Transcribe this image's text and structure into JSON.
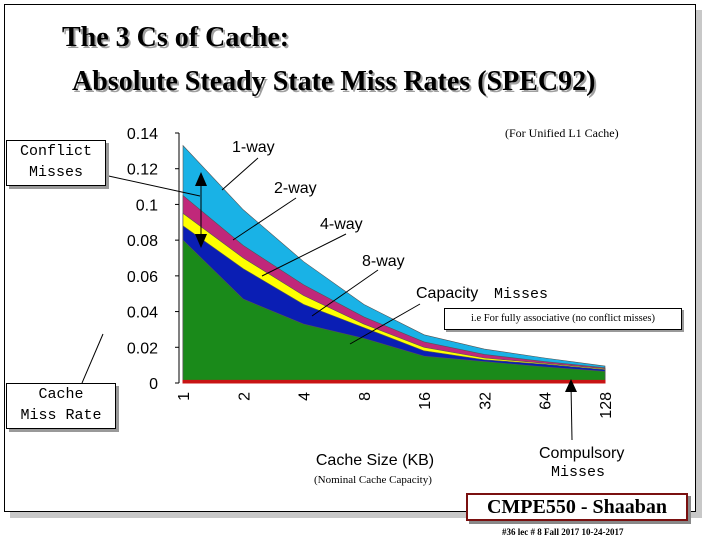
{
  "slide": {
    "title_line1": "The 3 Cs of Cache:",
    "title_line2": "Absolute Steady State Miss Rates (SPEC92)",
    "footer": "CMPE550 - Shaaban",
    "footer_sub": "#36  lec # 8   Fall 2017  10-24-2017"
  },
  "labels": {
    "conflict_box": [
      "Conflict",
      "Misses"
    ],
    "cache_box": [
      "Cache",
      "Miss Rate"
    ],
    "unified_note": "(For Unified L1 Cache)",
    "fully_assoc_note": "i.e For fully associative (no conflict misses)",
    "capacity_a": "Capacity",
    "capacity_b": "Misses",
    "compulsory_a": "Compulsory",
    "compulsory_b": "Misses",
    "nominal_note": "(Nominal Cache Capacity)"
  },
  "colors": {
    "one_way": "#19b2e6",
    "two_way": "#c0287a",
    "four_way": "#ffff00",
    "eight_way": "#0a1eb4",
    "capacity": "#1a8a1a",
    "compulsory": "#c81414"
  },
  "chart_data": {
    "type": "area",
    "title": "",
    "xlabel": "Cache Size (KB)",
    "ylabel": "",
    "categories": [
      "1",
      "2",
      "4",
      "8",
      "16",
      "32",
      "64",
      "128"
    ],
    "ylim": [
      0,
      0.14
    ],
    "yticks": [
      "0.14",
      "0.12",
      "0.1",
      "0.08",
      "0.06",
      "0.04",
      "0.02",
      "0"
    ],
    "series": [
      {
        "name": "1-way",
        "values": [
          0.133,
          0.097,
          0.068,
          0.044,
          0.027,
          0.019,
          0.014,
          0.0095
        ]
      },
      {
        "name": "2-way",
        "values": [
          0.105,
          0.077,
          0.055,
          0.037,
          0.023,
          0.016,
          0.012,
          0.0085
        ]
      },
      {
        "name": "4-way",
        "values": [
          0.095,
          0.07,
          0.049,
          0.033,
          0.02,
          0.014,
          0.011,
          0.008
        ]
      },
      {
        "name": "8-way",
        "values": [
          0.088,
          0.064,
          0.044,
          0.031,
          0.018,
          0.013,
          0.0105,
          0.0075
        ]
      },
      {
        "name": "Capacity",
        "values": [
          0.08,
          0.047,
          0.033,
          0.025,
          0.015,
          0.012,
          0.009,
          0.0065
        ]
      },
      {
        "name": "Compulsory",
        "values": [
          0.0015,
          0.0015,
          0.0015,
          0.0015,
          0.0015,
          0.0015,
          0.0015,
          0.0015
        ]
      }
    ]
  }
}
